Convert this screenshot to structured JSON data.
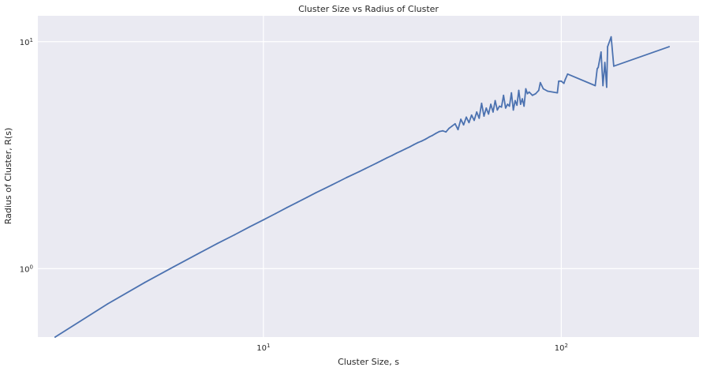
{
  "chart_data": {
    "type": "line",
    "title": "Cluster Size vs Radius of Cluster",
    "xlabel": "Cluster Size, s",
    "ylabel": "Radius of Cluster, R(s)",
    "xscale": "log",
    "yscale": "log",
    "xlim": [
      1.75,
      290
    ],
    "ylim": [
      0.5,
      13
    ],
    "grid": true,
    "background_color": "#eaeaf2",
    "grid_color": "#ffffff",
    "line_color": "#4c72b0",
    "x_ticks": [
      {
        "value": 10,
        "base": "10",
        "exp": "1"
      },
      {
        "value": 100,
        "base": "10",
        "exp": "2"
      }
    ],
    "y_ticks": [
      {
        "value": 1,
        "base": "10",
        "exp": "0"
      },
      {
        "value": 10,
        "base": "10",
        "exp": "1"
      }
    ],
    "series": [
      {
        "x": [
          2,
          3,
          4,
          5,
          6,
          7,
          8,
          9,
          10,
          11,
          12,
          13,
          14,
          15,
          16,
          17,
          18,
          19,
          20,
          21,
          22,
          23,
          24,
          25,
          26,
          27,
          28,
          29,
          30,
          31,
          32,
          33,
          34,
          35,
          36,
          37,
          38,
          39,
          40,
          41,
          42,
          43,
          44,
          45,
          46,
          47,
          48,
          49,
          50,
          51,
          52,
          53,
          54,
          55,
          56,
          57,
          58,
          59,
          60,
          61,
          62,
          63,
          64,
          65,
          66,
          67,
          68,
          69,
          70,
          71,
          72,
          73,
          74,
          75,
          76,
          77,
          78,
          80,
          82,
          84,
          85,
          87,
          90,
          97,
          98,
          100,
          102,
          103,
          105,
          130,
          132,
          133,
          136,
          138,
          140,
          142,
          143,
          147,
          150,
          230
        ],
        "y": [
          0.5,
          0.7,
          0.87,
          1.02,
          1.16,
          1.29,
          1.41,
          1.53,
          1.64,
          1.75,
          1.86,
          1.96,
          2.06,
          2.16,
          2.25,
          2.34,
          2.43,
          2.52,
          2.6,
          2.68,
          2.76,
          2.84,
          2.92,
          3.0,
          3.08,
          3.15,
          3.23,
          3.3,
          3.37,
          3.44,
          3.52,
          3.59,
          3.65,
          3.72,
          3.8,
          3.87,
          3.95,
          4.02,
          4.05,
          4.0,
          4.15,
          4.25,
          4.35,
          4.1,
          4.55,
          4.3,
          4.65,
          4.4,
          4.75,
          4.5,
          4.9,
          4.6,
          5.35,
          4.7,
          5.1,
          4.8,
          5.3,
          4.9,
          5.5,
          5.0,
          5.2,
          5.15,
          5.8,
          5.1,
          5.3,
          5.2,
          5.95,
          5.0,
          5.5,
          5.25,
          6.1,
          5.3,
          5.6,
          5.2,
          6.2,
          5.9,
          6.0,
          5.8,
          5.9,
          6.1,
          6.6,
          6.2,
          6.05,
          5.95,
          6.7,
          6.7,
          6.55,
          6.8,
          7.2,
          6.4,
          7.6,
          7.7,
          9.0,
          6.4,
          8.1,
          6.3,
          9.5,
          10.5,
          7.8,
          9.5
        ]
      }
    ]
  }
}
